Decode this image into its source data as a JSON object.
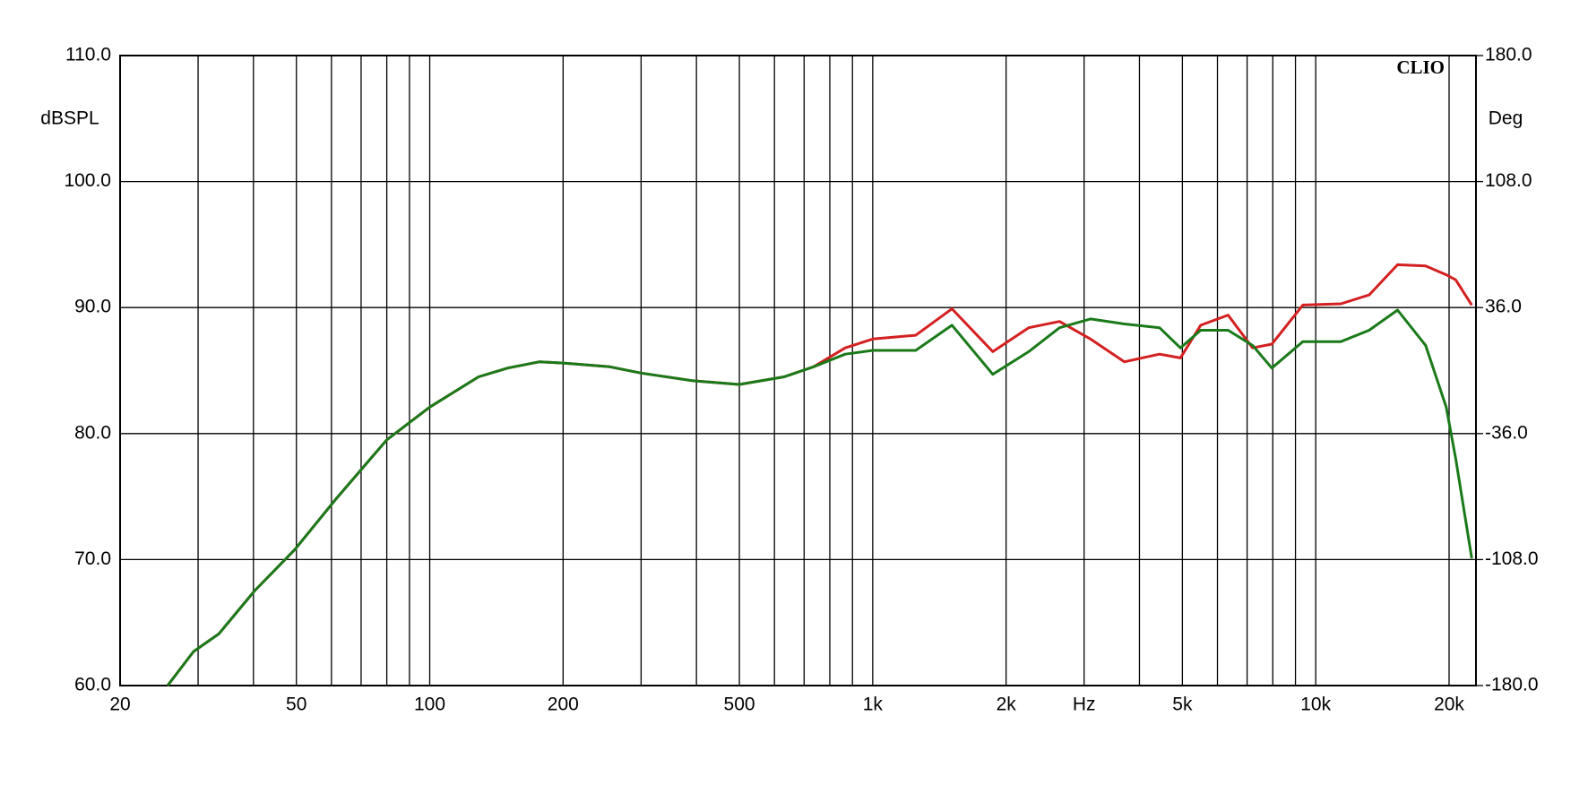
{
  "chart_data": {
    "type": "line",
    "title": "CLIO",
    "ylabel": "dBSPL",
    "y2label": "Deg",
    "log_x": true,
    "grid": true,
    "x": [
      25.6,
      29.3,
      33.4,
      40.2,
      49.6,
      61.4,
      80,
      100,
      128.9,
      150,
      177,
      200,
      255,
      300,
      390,
      500,
      631,
      735,
      867,
      1000,
      1250,
      1510,
      1866,
      2250,
      2640,
      3100,
      3700,
      4440,
      4950,
      5500,
      6340,
      7200,
      7960,
      9350,
      11400,
      13200,
      15300,
      17700,
      19700,
      20700,
      22500
    ],
    "series": [
      {
        "color": "#d42020",
        "values": [
          60.0,
          62.7,
          64.1,
          67.5,
          70.8,
          74.8,
          79.5,
          82.1,
          84.5,
          85.2,
          85.7,
          85.6,
          85.3,
          84.8,
          84.2,
          83.9,
          84.5,
          85.3,
          86.8,
          87.5,
          87.8,
          89.9,
          86.5,
          88.4,
          88.9,
          87.5,
          85.7,
          86.3,
          86.0,
          88.6,
          89.4,
          86.8,
          87.1,
          90.2,
          90.3,
          91.0,
          93.4,
          93.3,
          92.6,
          92.2,
          90.2
        ]
      },
      {
        "color": "#1a7a1a",
        "values": [
          60.0,
          62.7,
          64.1,
          67.5,
          70.8,
          74.8,
          79.5,
          82.1,
          84.5,
          85.2,
          85.7,
          85.6,
          85.3,
          84.8,
          84.2,
          83.9,
          84.5,
          85.3,
          86.3,
          86.6,
          86.6,
          88.6,
          84.7,
          86.5,
          88.4,
          89.1,
          88.7,
          88.4,
          86.8,
          88.2,
          88.2,
          87.0,
          85.2,
          87.3,
          87.3,
          88.2,
          89.8,
          87.0,
          82.1,
          78.0,
          70.1
        ]
      }
    ],
    "xlim": [
      20,
      23000
    ],
    "xticks": [
      20,
      50,
      100,
      200,
      500,
      {
        "value": 1000,
        "label": "1k"
      },
      {
        "value": 2000,
        "label": "2k"
      },
      {
        "value": 3000,
        "label": "Hz"
      },
      {
        "value": 5000,
        "label": "5k"
      },
      {
        "value": 10000,
        "label": "10k"
      },
      {
        "value": 20000,
        "label": "20k"
      }
    ],
    "xgrid": [
      30,
      40,
      60,
      70,
      80,
      90,
      300,
      400,
      600,
      700,
      800,
      900,
      4000,
      6000,
      7000,
      8000,
      9000
    ],
    "ylim": [
      60,
      110
    ],
    "yticks": [
      {
        "value": 60,
        "label": "60.0"
      },
      {
        "value": 70,
        "label": "70.0"
      },
      {
        "value": 80,
        "label": "80.0"
      },
      {
        "value": 90,
        "label": "90.0"
      },
      {
        "value": 100,
        "label": "100.0"
      },
      {
        "value": 110,
        "label": "110.0"
      }
    ],
    "y2lim": [
      -180,
      180
    ],
    "y2ticks": [
      {
        "value": -180,
        "label": "-180.0"
      },
      {
        "value": -108,
        "label": "-108.0"
      },
      {
        "value": -36,
        "label": "-36.0"
      },
      {
        "value": 36,
        "label": "36.0"
      },
      {
        "value": 108,
        "label": "108.0"
      },
      {
        "value": 180,
        "label": "180.0"
      }
    ]
  }
}
